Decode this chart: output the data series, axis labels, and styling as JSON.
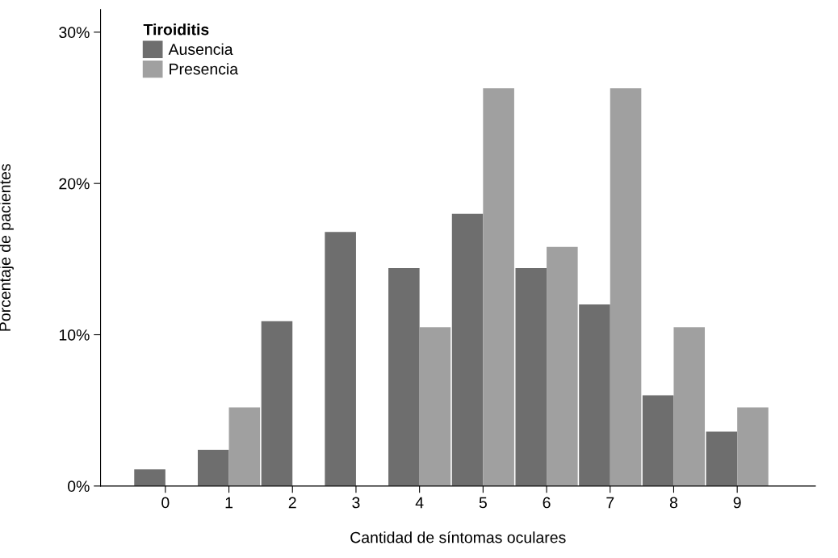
{
  "chart_data": {
    "type": "bar",
    "xlabel": "Cantidad de síntomas oculares",
    "ylabel": "Porcentaje de pacientes",
    "legend_title": "Tiroiditis",
    "categories": [
      "0",
      "1",
      "2",
      "3",
      "4",
      "5",
      "6",
      "7",
      "8",
      "9"
    ],
    "series": [
      {
        "name": "Ausencia",
        "color": "#6e6e6e",
        "values": [
          1.1,
          2.4,
          10.9,
          16.8,
          14.4,
          18.0,
          14.4,
          12.0,
          6.0,
          3.6
        ]
      },
      {
        "name": "Presencia",
        "color": "#a0a0a0",
        "values": [
          0,
          5.2,
          0,
          0,
          10.5,
          26.3,
          15.8,
          26.3,
          10.5,
          5.2
        ]
      }
    ],
    "ylim": [
      0,
      31.5
    ],
    "yticks": [
      {
        "value": 0,
        "label": "0%"
      },
      {
        "value": 10,
        "label": "10%"
      },
      {
        "value": 20,
        "label": "20%"
      },
      {
        "value": 30,
        "label": "30%"
      }
    ],
    "grid": false,
    "legend": "top left"
  }
}
